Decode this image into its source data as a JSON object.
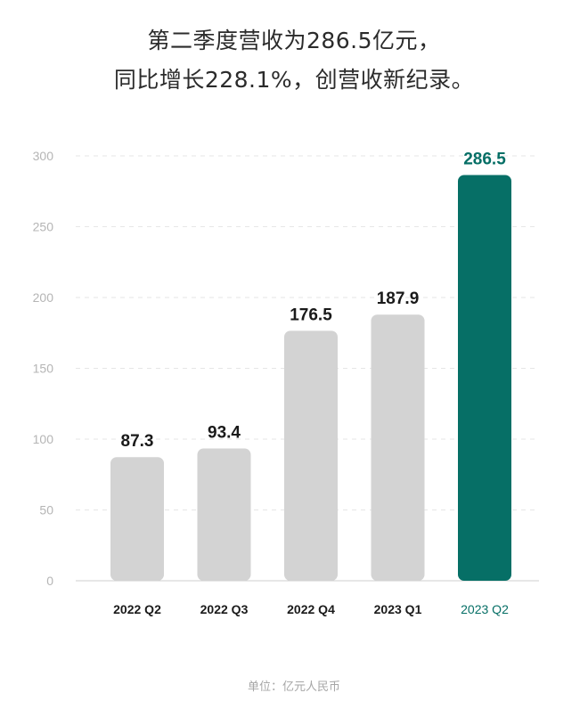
{
  "title_lines": [
    "第二季度营收为286.5亿元，",
    "同比增长228.1%，创营收新纪录。"
  ],
  "unit_note": "单位：亿元人民币",
  "colors": {
    "normal_bar": "#d3d3d3",
    "highlight_bar": "#066f66",
    "grid": "#e6e6e6",
    "axis": "#cfcfcf"
  },
  "chart_data": {
    "type": "bar",
    "categories": [
      "2022 Q2",
      "2022 Q3",
      "2022 Q4",
      "2023 Q1",
      "2023 Q2"
    ],
    "values": [
      87.3,
      93.4,
      176.5,
      187.9,
      286.5
    ],
    "value_labels": [
      "87.3",
      "93.4",
      "176.5",
      "187.9",
      "286.5"
    ],
    "highlight_index": 4,
    "yticks": [
      0,
      50,
      100,
      150,
      200,
      250,
      300
    ],
    "ylim": [
      0,
      300
    ],
    "grid": true,
    "legend": "none"
  }
}
